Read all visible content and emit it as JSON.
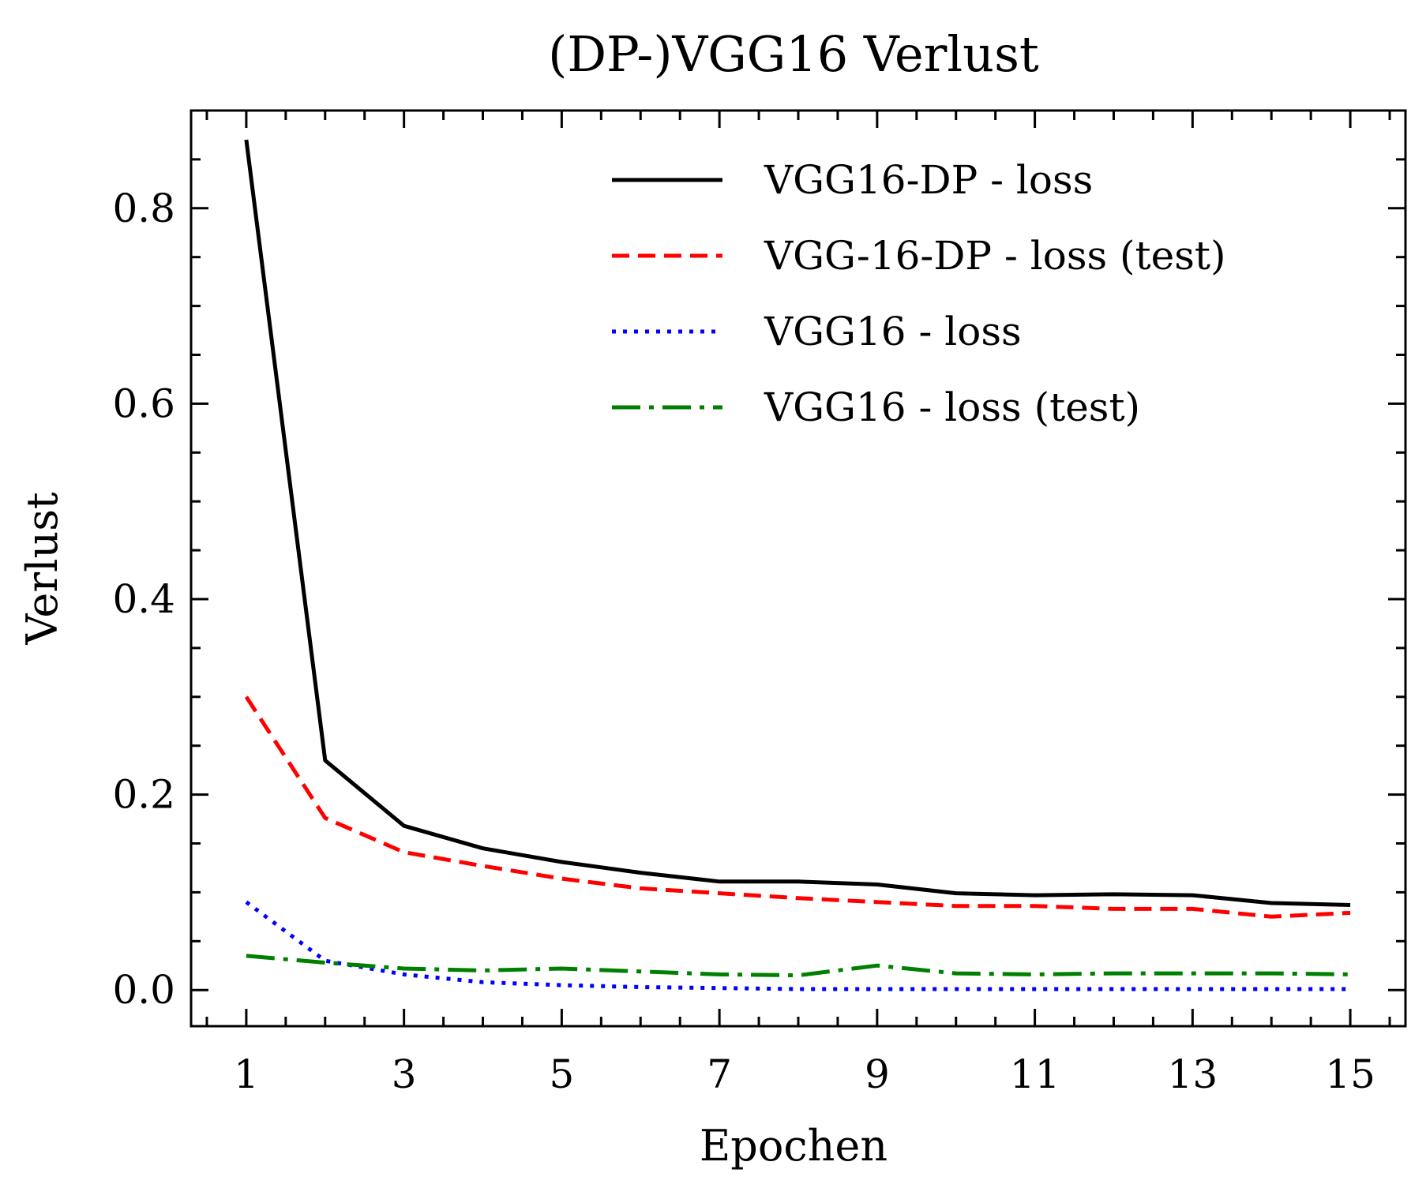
{
  "chart_data": {
    "type": "line",
    "title": "(DP-)VGG16 Verlust",
    "xlabel": "Epochen",
    "ylabel": "Verlust",
    "xlim": [
      0.3,
      15.7
    ],
    "ylim": [
      -0.037,
      0.9
    ],
    "xticks": [
      1,
      3,
      5,
      7,
      9,
      11,
      13,
      15
    ],
    "xtick_labels": [
      "1",
      "3",
      "5",
      "7",
      "9",
      "11",
      "13",
      "15"
    ],
    "yticks": [
      0.0,
      0.2,
      0.4,
      0.6,
      0.8
    ],
    "ytick_labels": [
      "0.0",
      "0.2",
      "0.4",
      "0.6",
      "0.8"
    ],
    "grid": false,
    "legend_position": "top-right",
    "x": [
      1,
      2,
      3,
      4,
      5,
      6,
      7,
      8,
      9,
      10,
      11,
      12,
      13,
      14,
      15
    ],
    "series": [
      {
        "name": "VGG16-DP - loss",
        "color": "#000000",
        "style": "solid",
        "values": [
          0.87,
          0.235,
          0.168,
          0.145,
          0.131,
          0.12,
          0.111,
          0.111,
          0.108,
          0.099,
          0.097,
          0.098,
          0.097,
          0.089,
          0.087
        ]
      },
      {
        "name": "VGG-16-DP - loss (test)",
        "color": "#ff0000",
        "style": "dashed",
        "values": [
          0.3,
          0.176,
          0.141,
          0.127,
          0.114,
          0.104,
          0.099,
          0.094,
          0.09,
          0.086,
          0.086,
          0.083,
          0.083,
          0.075,
          0.079
        ]
      },
      {
        "name": "VGG16 - loss",
        "color": "#0000ff",
        "style": "dotted",
        "values": [
          0.09,
          0.03,
          0.016,
          0.008,
          0.005,
          0.003,
          0.002,
          0.001,
          0.001,
          0.001,
          0.001,
          0.001,
          0.001,
          0.001,
          0.001
        ]
      },
      {
        "name": "VGG16 - loss (test)",
        "color": "#008000",
        "style": "dashdot",
        "values": [
          0.035,
          0.028,
          0.022,
          0.02,
          0.022,
          0.019,
          0.016,
          0.015,
          0.025,
          0.017,
          0.016,
          0.017,
          0.017,
          0.017,
          0.016
        ]
      }
    ]
  }
}
